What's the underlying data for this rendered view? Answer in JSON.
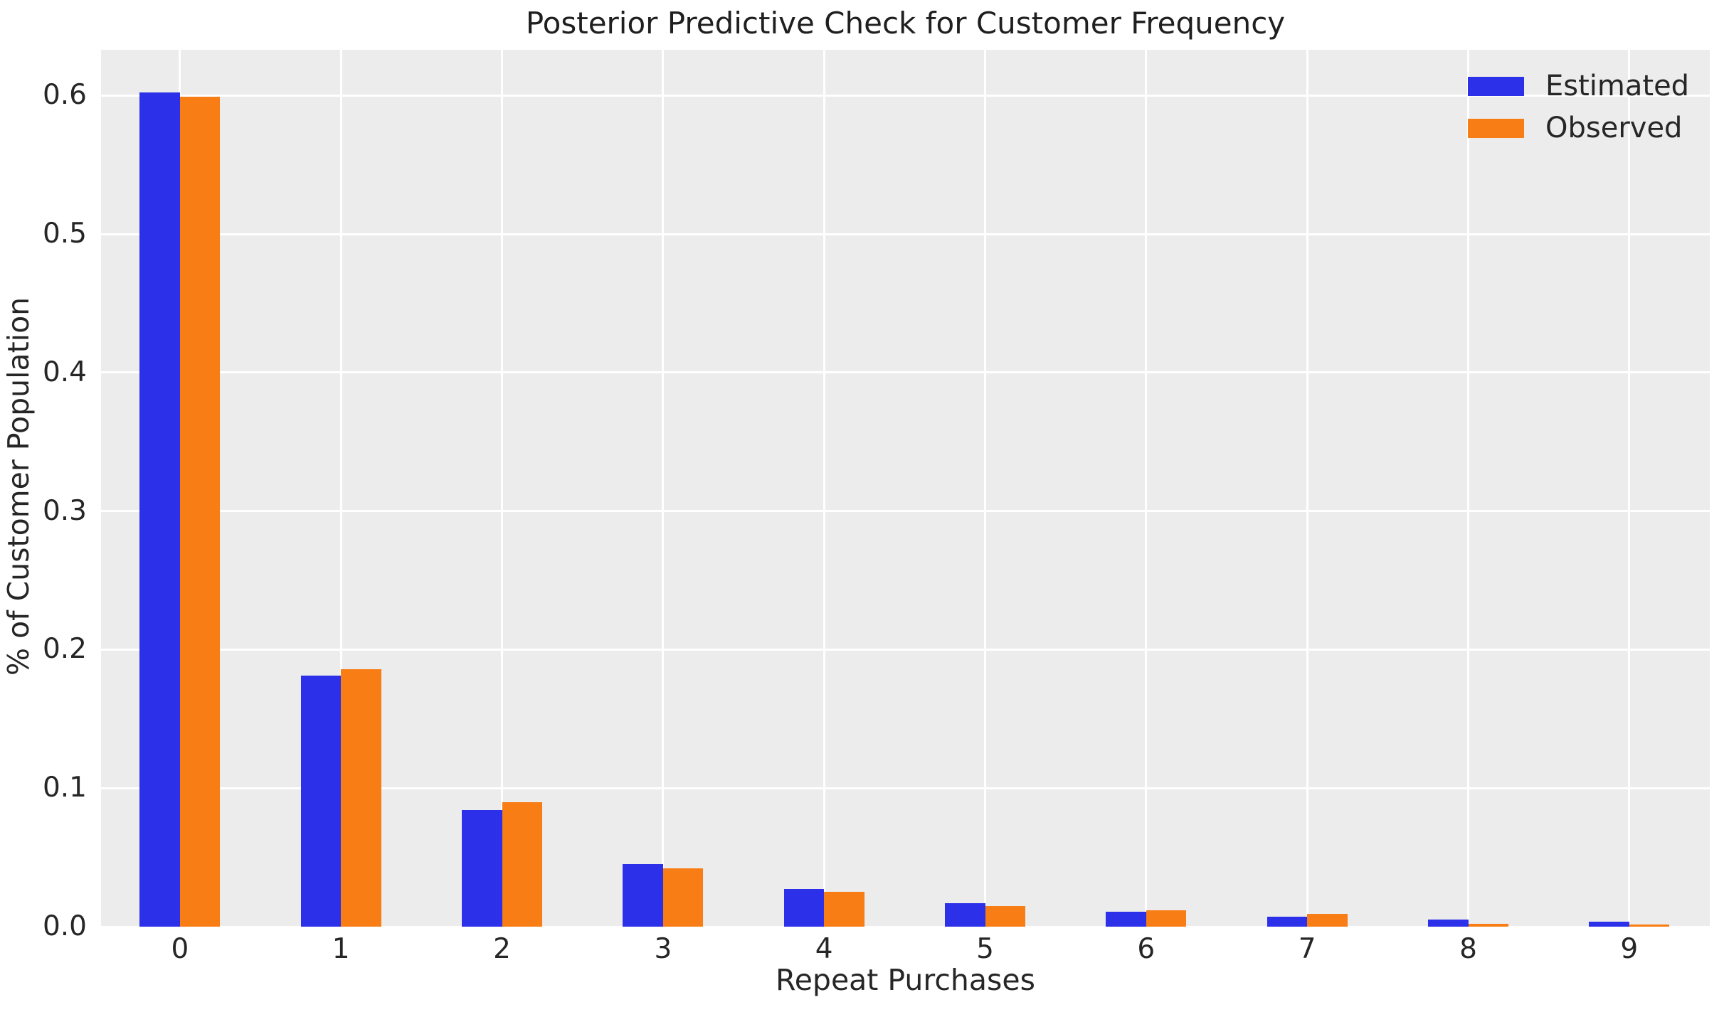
{
  "chart_data": {
    "type": "bar",
    "title": "Posterior Predictive Check for Customer Frequency",
    "xlabel": "Repeat Purchases",
    "ylabel": "% of Customer Population",
    "categories": [
      "0",
      "1",
      "2",
      "3",
      "4",
      "5",
      "6",
      "7",
      "8",
      "9"
    ],
    "series": [
      {
        "name": "Estimated",
        "color": "#2c30e9",
        "values": [
          0.602,
          0.181,
          0.084,
          0.045,
          0.027,
          0.017,
          0.011,
          0.007,
          0.005,
          0.0035
        ]
      },
      {
        "name": "Observed",
        "color": "#f97d15",
        "values": [
          0.599,
          0.186,
          0.09,
          0.042,
          0.025,
          0.015,
          0.012,
          0.009,
          0.002,
          0.0015
        ]
      }
    ],
    "yticks": [
      0.0,
      0.1,
      0.2,
      0.3,
      0.4,
      0.5,
      0.6
    ],
    "ytick_labels": [
      "0.0",
      "0.1",
      "0.2",
      "0.3",
      "0.4",
      "0.5",
      "0.6"
    ],
    "ylim": [
      0,
      0.633
    ],
    "grid": true,
    "grid_color": "#ffffff",
    "plot_background": "#ececec",
    "text_color": "#262626",
    "legend_position": "upper right",
    "legend_entries": [
      "Estimated",
      "Observed"
    ]
  }
}
